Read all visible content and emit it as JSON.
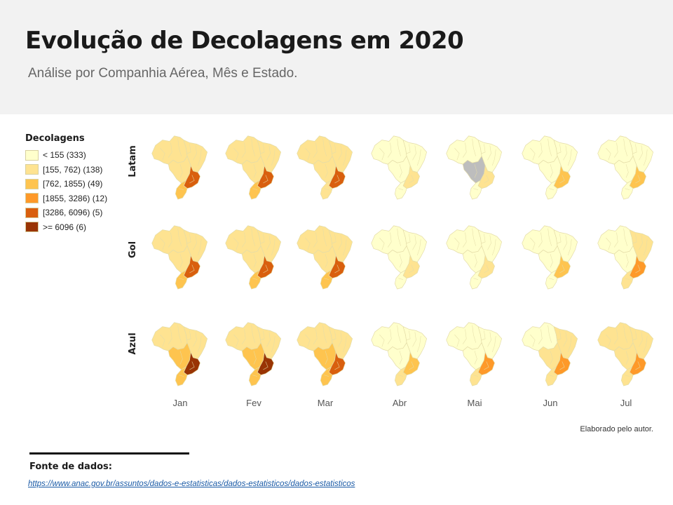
{
  "header": {
    "title": "Evolução de Decolagens em 2020",
    "subtitle": "Análise por Companhia Aérea, Mês e Estado."
  },
  "legend": {
    "title": "Decolagens",
    "items": [
      {
        "label": "< 155 (333)",
        "color": "#ffffcc"
      },
      {
        "label": "[155, 762) (138)",
        "color": "#fee391"
      },
      {
        "label": "[762, 1855) (49)",
        "color": "#fec44f"
      },
      {
        "label": "[1855, 3286) (12)",
        "color": "#fe9929"
      },
      {
        "label": "[3286, 6096) (5)",
        "color": "#d95f0e"
      },
      {
        "label": ">= 6096 (6)",
        "color": "#993404"
      }
    ],
    "no_data_color": "#bdbdbd"
  },
  "chart_data": {
    "type": "choropleth-small-multiples",
    "value_unit": "legend class index (0 = lowest, 5 = highest, -1 = no data)",
    "rows": [
      "Latam",
      "Gol",
      "Azul"
    ],
    "columns": [
      "Jan",
      "Fev",
      "Mar",
      "Abr",
      "Mai",
      "Jun",
      "Jul"
    ],
    "regions": [
      "North",
      "Northeast",
      "Center-West",
      "Southeast",
      "South"
    ],
    "cells": [
      [
        {
          "North": 1,
          "Northeast": 1,
          "Center-West": 1,
          "Southeast": 4,
          "South": 2
        },
        {
          "North": 1,
          "Northeast": 1,
          "Center-West": 1,
          "Southeast": 4,
          "South": 2
        },
        {
          "North": 1,
          "Northeast": 1,
          "Center-West": 1,
          "Southeast": 4,
          "South": 1
        },
        {
          "North": 0,
          "Northeast": 0,
          "Center-West": 0,
          "Southeast": 1,
          "South": 0
        },
        {
          "North": 0,
          "Northeast": 0,
          "Center-West": -1,
          "Southeast": 1,
          "South": 0
        },
        {
          "North": 0,
          "Northeast": 0,
          "Center-West": 0,
          "Southeast": 2,
          "South": 0
        },
        {
          "North": 0,
          "Northeast": 0,
          "Center-West": 0,
          "Southeast": 2,
          "South": 0
        }
      ],
      [
        {
          "North": 1,
          "Northeast": 1,
          "Center-West": 1,
          "Southeast": 4,
          "South": 2
        },
        {
          "North": 1,
          "Northeast": 1,
          "Center-West": 1,
          "Southeast": 4,
          "South": 2
        },
        {
          "North": 1,
          "Northeast": 1,
          "Center-West": 1,
          "Southeast": 4,
          "South": 2
        },
        {
          "North": 0,
          "Northeast": 0,
          "Center-West": 0,
          "Southeast": 1,
          "South": 0
        },
        {
          "North": 0,
          "Northeast": 0,
          "Center-West": 0,
          "Southeast": 1,
          "South": 0
        },
        {
          "North": 0,
          "Northeast": 0,
          "Center-West": 0,
          "Southeast": 2,
          "South": 0
        },
        {
          "North": 0,
          "Northeast": 1,
          "Center-West": 0,
          "Southeast": 3,
          "South": 1
        }
      ],
      [
        {
          "North": 1,
          "Northeast": 1,
          "Center-West": 2,
          "Southeast": 5,
          "South": 2
        },
        {
          "North": 1,
          "Northeast": 1,
          "Center-West": 2,
          "Southeast": 5,
          "South": 2
        },
        {
          "North": 1,
          "Northeast": 1,
          "Center-West": 2,
          "Southeast": 4,
          "South": 2
        },
        {
          "North": 0,
          "Northeast": 0,
          "Center-West": 0,
          "Southeast": 2,
          "South": 1
        },
        {
          "North": 0,
          "Northeast": 0,
          "Center-West": 0,
          "Southeast": 3,
          "South": 1
        },
        {
          "North": 0,
          "Northeast": 1,
          "Center-West": 1,
          "Southeast": 3,
          "South": 1
        },
        {
          "North": 1,
          "Northeast": 1,
          "Center-West": 1,
          "Southeast": 3,
          "South": 1
        }
      ]
    ]
  },
  "credit": "Elaborado pelo autor.",
  "source": {
    "title": "Fonte de dados:",
    "link": "https://www.anac.gov.br/assuntos/dados-e-estatisticas/dados-estatisticos/dados-estatisticos"
  }
}
